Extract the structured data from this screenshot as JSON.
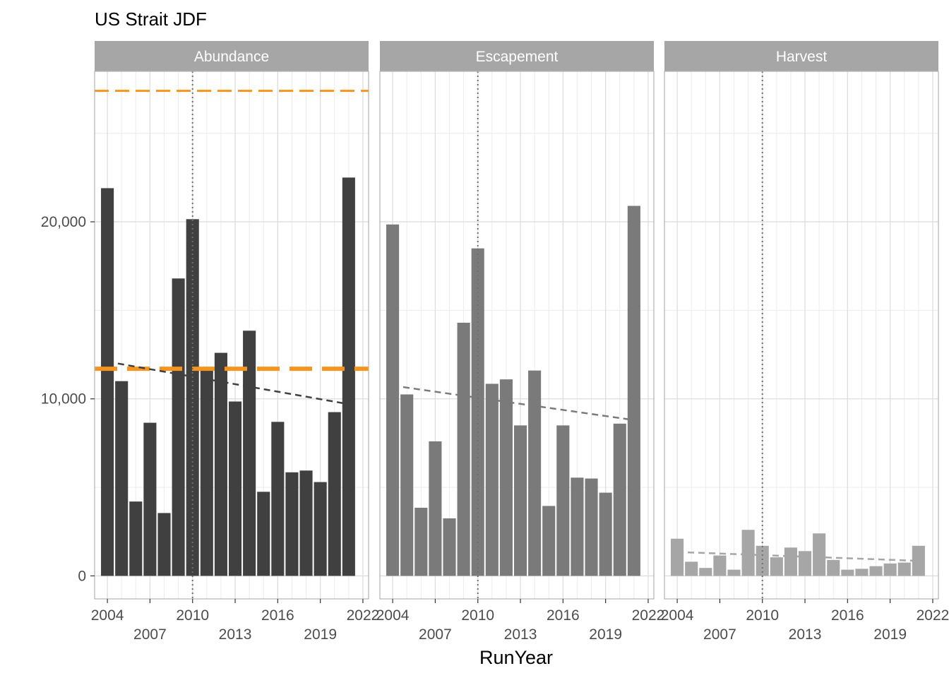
{
  "chart_data": {
    "type": "bar",
    "title": "US Strait JDF",
    "xlabel": "RunYear",
    "ylabel": "",
    "x_ticks": [
      2004,
      2007,
      2010,
      2013,
      2016,
      2019,
      2022
    ],
    "y_ticks": [
      0,
      10000,
      20000
    ],
    "y_tick_labels": [
      "0",
      "10,000",
      "20,000"
    ],
    "ylim": [
      -1300,
      28500
    ],
    "xlim": [
      2003.1,
      2022.4
    ],
    "x": [
      2004,
      2005,
      2006,
      2007,
      2008,
      2009,
      2010,
      2011,
      2012,
      2013,
      2014,
      2015,
      2016,
      2017,
      2018,
      2019,
      2020,
      2021
    ],
    "grid": true,
    "reference_year": 2010,
    "colors": {
      "Abundance": "#404040",
      "Escapement": "#7a7a7a",
      "Harvest": "#a6a6a6",
      "reference_lines": "#f7941d",
      "strip": "#a6a6a6",
      "grid": "#dedede"
    },
    "panels": [
      {
        "name": "Abundance",
        "values": [
          21900,
          11000,
          4200,
          8650,
          3550,
          16800,
          20150,
          11650,
          12600,
          9850,
          13850,
          4750,
          8700,
          5850,
          5950,
          5300,
          9250,
          22500
        ],
        "trend": {
          "start": [
            2004,
            12100
          ],
          "end": [
            2021,
            9700
          ]
        },
        "reference_lines": [
          {
            "y": 27400,
            "style": "dashed-thin"
          },
          {
            "y": 11700,
            "style": "dashed-thick"
          }
        ]
      },
      {
        "name": "Escapement",
        "values": [
          19850,
          10250,
          3850,
          7600,
          3250,
          14300,
          18500,
          10850,
          11100,
          8500,
          11600,
          3950,
          8500,
          5550,
          5500,
          4700,
          8600,
          20900
        ],
        "trend": {
          "start": [
            2004,
            10750
          ],
          "end": [
            2021,
            8800
          ]
        },
        "reference_lines": []
      },
      {
        "name": "Harvest",
        "values": [
          2100,
          800,
          450,
          1150,
          350,
          2600,
          1700,
          1050,
          1600,
          1400,
          2400,
          900,
          350,
          400,
          550,
          700,
          750,
          1700
        ],
        "trend": {
          "start": [
            2004,
            1350
          ],
          "end": [
            2021,
            850
          ]
        },
        "reference_lines": []
      }
    ]
  }
}
